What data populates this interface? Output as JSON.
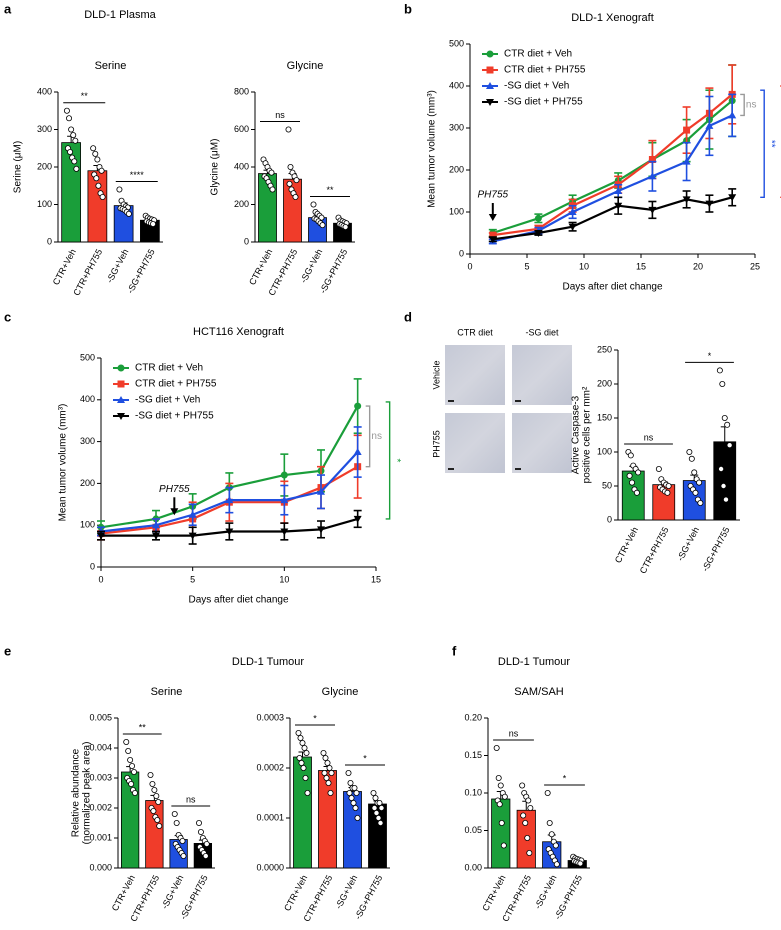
{
  "figure": {
    "panels": [
      "a",
      "b",
      "c",
      "d",
      "e",
      "f"
    ],
    "headers": [
      "DLD-1 Plasma",
      "DLD-1 Tumour",
      "DLD-1 Tumour"
    ],
    "micrographs": {
      "columns": [
        "CTR diet",
        "-SG diet"
      ],
      "rows": [
        "Vehicle",
        "PH755"
      ]
    }
  },
  "chart_data": [
    {
      "type": "bar",
      "title": "Serine",
      "ylabel": [
        "Serine (μM)"
      ],
      "categories": [
        "CTR+Veh",
        "CTR+PH755",
        "-SG+Veh",
        "-SG+PH755"
      ],
      "colors": [
        "#1a9e3a",
        "#f03c2a",
        "#1f4fe0",
        "#000000"
      ],
      "values": [
        265,
        190,
        97,
        58
      ],
      "errors": [
        17,
        14,
        7,
        3
      ],
      "points": [
        [
          350,
          330,
          300,
          285,
          270,
          250,
          240,
          225,
          215,
          195
        ],
        [
          250,
          235,
          220,
          200,
          190,
          180,
          170,
          150,
          130,
          120
        ],
        [
          140,
          110,
          100,
          95,
          92,
          90,
          88,
          85,
          80,
          75
        ],
        [
          70,
          65,
          62,
          60,
          58,
          55,
          52,
          50,
          48
        ]
      ],
      "significance": [
        "**",
        "****"
      ],
      "ylim": [
        0,
        400
      ],
      "yticks": [
        0,
        100,
        200,
        300,
        400
      ]
    },
    {
      "type": "bar",
      "title": "Glycine",
      "ylabel": [
        "Glycine (μM)"
      ],
      "categories": [
        "CTR+Veh",
        "CTR+PH755",
        "-SG+Veh",
        "-SG+PH755"
      ],
      "colors": [
        "#1a9e3a",
        "#f03c2a",
        "#1f4fe0",
        "#000000"
      ],
      "values": [
        365,
        335,
        130,
        100
      ],
      "errors": [
        18,
        30,
        10,
        6
      ],
      "points": [
        [
          440,
          420,
          400,
          380,
          370,
          350,
          340,
          320,
          300,
          280
        ],
        [
          600,
          400,
          370,
          350,
          330,
          310,
          280,
          260,
          240
        ],
        [
          200,
          160,
          150,
          140,
          130,
          125,
          120,
          110,
          100,
          90
        ],
        [
          130,
          115,
          110,
          105,
          100,
          95,
          90,
          85,
          80
        ]
      ],
      "significance": [
        "ns",
        "**"
      ],
      "ylim": [
        0,
        800
      ],
      "yticks": [
        0,
        200,
        400,
        600,
        800
      ]
    },
    {
      "type": "line",
      "title": "DLD-1 Xenograft",
      "xlabel": "Days after diet change",
      "ylabel": [
        "Mean tumor volume (mm³)"
      ],
      "x": [
        2,
        6,
        9,
        13,
        16,
        19,
        21,
        23
      ],
      "series": [
        {
          "name": "CTR diet + Veh",
          "color": "#1a9e3a",
          "marker": "circle",
          "values": [
            50,
            85,
            125,
            175,
            225,
            270,
            320,
            365
          ],
          "errors": [
            8,
            10,
            15,
            18,
            40,
            50,
            70,
            85
          ]
        },
        {
          "name": "CTR diet + PH755",
          "color": "#f03c2a",
          "marker": "square",
          "values": [
            45,
            60,
            115,
            165,
            225,
            295,
            335,
            380
          ],
          "errors": [
            5,
            8,
            15,
            20,
            45,
            55,
            60,
            70
          ]
        },
        {
          "name": "-SG diet + Veh",
          "color": "#1f4fe0",
          "marker": "triangle",
          "values": [
            30,
            55,
            100,
            150,
            185,
            220,
            305,
            330
          ],
          "errors": [
            5,
            8,
            15,
            15,
            35,
            45,
            70,
            50
          ]
        },
        {
          "name": "-SG diet + PH755",
          "color": "#000000",
          "marker": "triangle-down",
          "values": [
            35,
            50,
            65,
            115,
            105,
            130,
            120,
            135
          ],
          "errors": [
            5,
            5,
            10,
            20,
            20,
            20,
            20,
            20
          ]
        }
      ],
      "treatment_day": 2,
      "treatment_label": "PH755",
      "annotations": [
        {
          "text": "ns",
          "color": "#999999"
        },
        {
          "text": "**",
          "color": "#1f4fe0"
        },
        {
          "text": "**",
          "color": "#f03c2a"
        }
      ],
      "legend": "upper left",
      "xlim": [
        0,
        25
      ],
      "xticks": [
        0,
        5,
        10,
        15,
        20,
        25
      ],
      "ylim": [
        0,
        500
      ],
      "yticks": [
        0,
        100,
        200,
        300,
        400,
        500
      ]
    },
    {
      "type": "line",
      "title": "HCT116 Xenograft",
      "xlabel": "Days after diet change",
      "ylabel": [
        "Mean tumor volume (mm³)"
      ],
      "x": [
        0,
        3,
        5,
        7,
        10,
        12,
        14
      ],
      "series": [
        {
          "name": "CTR diet + Veh",
          "color": "#1a9e3a",
          "marker": "circle",
          "values": [
            95,
            115,
            145,
            190,
            220,
            230,
            385
          ],
          "errors": [
            15,
            20,
            30,
            35,
            50,
            50,
            65
          ]
        },
        {
          "name": "CTR diet + PH755",
          "color": "#f03c2a",
          "marker": "square",
          "values": [
            80,
            95,
            115,
            155,
            155,
            190,
            240
          ],
          "errors": [
            15,
            20,
            40,
            45,
            50,
            50,
            75
          ]
        },
        {
          "name": "-SG diet + Veh",
          "color": "#1f4fe0",
          "marker": "triangle",
          "values": [
            85,
            100,
            125,
            160,
            160,
            180,
            275
          ],
          "errors": [
            10,
            15,
            25,
            30,
            35,
            40,
            60
          ]
        },
        {
          "name": "-SG diet + PH755",
          "color": "#000000",
          "marker": "triangle-down",
          "values": [
            75,
            75,
            75,
            85,
            85,
            90,
            115
          ],
          "errors": [
            10,
            10,
            20,
            20,
            20,
            20,
            20
          ]
        }
      ],
      "treatment_day": 4,
      "treatment_label": "PH755",
      "annotations": [
        {
          "text": "ns",
          "color": "#999999"
        },
        {
          "text": "*",
          "color": "#1a9e3a"
        }
      ],
      "legend": "upper left",
      "xlim": [
        0,
        15
      ],
      "xticks": [
        0,
        5,
        10,
        15
      ],
      "ylim": [
        0,
        500
      ],
      "yticks": [
        0,
        100,
        200,
        300,
        400,
        500
      ]
    },
    {
      "type": "bar",
      "ylabel": [
        "Active Caspase-3",
        "positive cells per mm²"
      ],
      "categories": [
        "CTR+Veh",
        "CTR+PH755",
        "-SG+Veh",
        "-SG+PH755"
      ],
      "colors": [
        "#1a9e3a",
        "#f03c2a",
        "#1f4fe0",
        "#000000"
      ],
      "values": [
        72,
        52,
        58,
        115
      ],
      "errors": [
        7,
        4,
        8,
        22
      ],
      "points": [
        [
          100,
          95,
          80,
          75,
          70,
          65,
          55,
          45,
          40
        ],
        [
          75,
          60,
          55,
          52,
          50,
          48,
          45,
          42,
          40
        ],
        [
          100,
          90,
          70,
          60,
          55,
          50,
          45,
          40,
          30,
          25
        ],
        [
          220,
          200,
          150,
          140,
          110,
          75,
          50,
          30
        ]
      ],
      "significance": [
        "ns",
        "*"
      ],
      "ylim": [
        0,
        250
      ],
      "yticks": [
        0,
        50,
        100,
        150,
        200,
        250
      ]
    },
    {
      "type": "bar",
      "title": "Serine",
      "ylabel": [
        "Relative abundance",
        "(normalized peak area)"
      ],
      "categories": [
        "CTR+Veh",
        "CTR+PH755",
        "-SG+Veh",
        "-SG+PH755"
      ],
      "colors": [
        "#1a9e3a",
        "#f03c2a",
        "#1f4fe0",
        "#000000"
      ],
      "values": [
        0.0032,
        0.00225,
        0.00095,
        0.00082
      ],
      "errors": [
        0.00018,
        0.00017,
        0.00013,
        0.00011
      ],
      "points": [
        [
          0.0042,
          0.0039,
          0.0036,
          0.0034,
          0.0032,
          0.003,
          0.0029,
          0.0028,
          0.0026,
          0.0025
        ],
        [
          0.0031,
          0.0028,
          0.0026,
          0.0024,
          0.0022,
          0.002,
          0.0019,
          0.0017,
          0.0016,
          0.0014
        ],
        [
          0.0018,
          0.0015,
          0.0011,
          0.001,
          0.0009,
          0.0008,
          0.0007,
          0.0006,
          0.0005,
          0.0004
        ],
        [
          0.0015,
          0.0012,
          0.001,
          0.0009,
          0.0008,
          0.0007,
          0.0006,
          0.0005,
          0.0004
        ]
      ],
      "significance": [
        "**",
        "ns"
      ],
      "ylim": [
        0,
        0.005
      ],
      "yticks": [
        {
          "value": 0,
          "label": "0.000"
        },
        {
          "value": 0.001,
          "label": "0.001"
        },
        {
          "value": 0.002,
          "label": "0.002"
        },
        {
          "value": 0.003,
          "label": "0.003"
        },
        {
          "value": 0.004,
          "label": "0.004"
        },
        {
          "value": 0.005,
          "label": "0.005"
        }
      ]
    },
    {
      "type": "bar",
      "title": "Glycine",
      "categories": [
        "CTR+Veh",
        "CTR+PH755",
        "-SG+Veh",
        "-SG+PH755"
      ],
      "colors": [
        "#1a9e3a",
        "#f03c2a",
        "#1f4fe0",
        "#000000"
      ],
      "values": [
        0.000222,
        0.000195,
        0.000153,
        0.000128
      ],
      "errors": [
        1e-05,
        8e-06,
        8e-06,
        6e-06
      ],
      "points": [
        [
          0.00027,
          0.00026,
          0.00025,
          0.00024,
          0.00023,
          0.00022,
          0.00021,
          0.0002,
          0.00018,
          0.00015
        ],
        [
          0.00023,
          0.00022,
          0.00021,
          0.0002,
          0.00019,
          0.00019,
          0.00018,
          0.00017,
          0.00015
        ],
        [
          0.00019,
          0.00017,
          0.00016,
          0.00016,
          0.00015,
          0.00015,
          0.00014,
          0.00013,
          0.00012,
          0.0001
        ],
        [
          0.00015,
          0.00014,
          0.00013,
          0.00013,
          0.00012,
          0.00012,
          0.00011,
          0.0001,
          9e-05
        ]
      ],
      "significance": [
        "*",
        "*"
      ],
      "ylim": [
        0,
        0.0003
      ],
      "yticks": [
        {
          "value": 0,
          "label": "0.0000"
        },
        {
          "value": 0.0001,
          "label": "0.0001"
        },
        {
          "value": 0.0002,
          "label": "0.0002"
        },
        {
          "value": 0.0003,
          "label": "0.0003"
        }
      ]
    },
    {
      "type": "bar",
      "title": "SAM/SAH",
      "categories": [
        "CTR+Veh",
        "CTR+PH755",
        "-SG+Veh",
        "-SG+PH755"
      ],
      "colors": [
        "#1a9e3a",
        "#f03c2a",
        "#1f4fe0",
        "#000000"
      ],
      "values": [
        0.092,
        0.077,
        0.035,
        0.01
      ],
      "errors": [
        0.01,
        0.012,
        0.009,
        0.001
      ],
      "points": [
        [
          0.16,
          0.12,
          0.11,
          0.1,
          0.095,
          0.09,
          0.085,
          0.06,
          0.03
        ],
        [
          0.11,
          0.1,
          0.095,
          0.09,
          0.08,
          0.07,
          0.06,
          0.04,
          0.02
        ],
        [
          0.1,
          0.06,
          0.045,
          0.035,
          0.03,
          0.025,
          0.02,
          0.015,
          0.01,
          0.005
        ],
        [
          0.015,
          0.013,
          0.012,
          0.011,
          0.01,
          0.009,
          0.008,
          0.007,
          0.006
        ]
      ],
      "significance": [
        "ns",
        "*"
      ],
      "ylim": [
        0,
        0.2
      ],
      "yticks": [
        {
          "value": 0,
          "label": "0.00"
        },
        {
          "value": 0.05,
          "label": "0.05"
        },
        {
          "value": 0.1,
          "label": "0.10"
        },
        {
          "value": 0.15,
          "label": "0.15"
        },
        {
          "value": 0.2,
          "label": "0.20"
        }
      ]
    }
  ]
}
